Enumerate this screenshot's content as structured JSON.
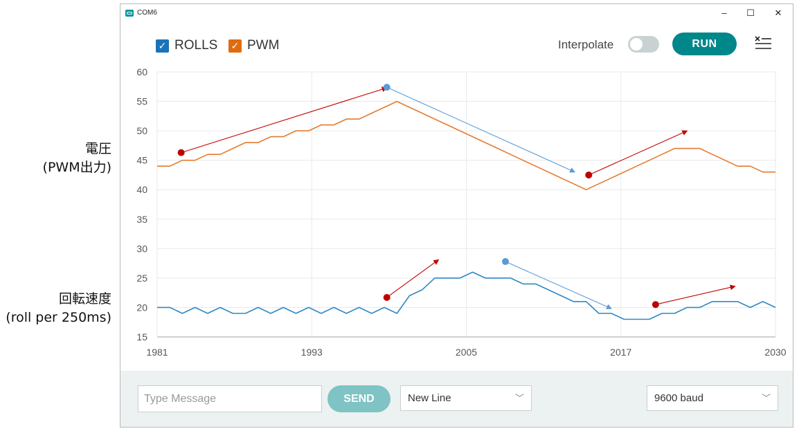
{
  "annotations": {
    "pwm_label": [
      "電圧",
      "(PWM出力)"
    ],
    "rolls_label": [
      "回転速度",
      "(roll per 250ms)"
    ]
  },
  "window": {
    "title": "COM6",
    "controls": {
      "minimize": "–",
      "maximize": "☐",
      "close": "✕"
    }
  },
  "toolbar": {
    "legend": [
      {
        "label": "ROLLS",
        "color": "#1a73b8",
        "checked": true
      },
      {
        "label": "PWM",
        "color": "#e06c10",
        "checked": true
      }
    ],
    "interpolate_label": "Interpolate",
    "interpolate_on": false,
    "run_label": "RUN",
    "clear_icon": "clear-output-icon"
  },
  "chart_data": {
    "type": "line",
    "x_ticks": [
      "1981",
      "1993",
      "2005",
      "2017",
      "2030"
    ],
    "ylim": [
      15,
      60
    ],
    "y_ticks": [
      15,
      20,
      25,
      30,
      35,
      40,
      45,
      50,
      55,
      60
    ],
    "grid": true,
    "series": [
      {
        "name": "PWM",
        "color": "#e57a2e",
        "values": [
          44,
          44,
          45,
          45,
          46,
          46,
          47,
          48,
          48,
          49,
          49,
          50,
          50,
          51,
          51,
          52,
          52,
          53,
          54,
          55,
          54,
          53,
          52,
          51,
          50,
          49,
          48,
          47,
          46,
          45,
          44,
          43,
          42,
          41,
          40,
          41,
          42,
          43,
          44,
          45,
          46,
          47,
          47,
          47,
          46,
          45,
          44,
          44,
          43,
          43
        ]
      },
      {
        "name": "ROLLS",
        "color": "#2e88c4",
        "values": [
          20,
          20,
          19,
          20,
          19,
          20,
          19,
          19,
          20,
          19,
          20,
          19,
          20,
          19,
          20,
          19,
          20,
          19,
          20,
          19,
          22,
          23,
          25,
          25,
          25,
          26,
          25,
          25,
          25,
          24,
          24,
          23,
          22,
          21,
          21,
          19,
          19,
          18,
          18,
          18,
          19,
          19,
          20,
          20,
          21,
          21,
          21,
          20,
          21,
          20
        ]
      }
    ],
    "annotation_arrows": [
      {
        "color": "#c00000",
        "from": [
          1.9,
          46.3
        ],
        "to": [
          18.2,
          57.3
        ]
      },
      {
        "color": "#5b9bd5",
        "from": [
          18.2,
          57.4
        ],
        "to": [
          33.1,
          43.0
        ]
      },
      {
        "color": "#c00000",
        "from": [
          34.2,
          42.5
        ],
        "to": [
          42.0,
          50.0
        ]
      },
      {
        "color": "#c00000",
        "from": [
          18.2,
          21.7
        ],
        "to": [
          22.3,
          28.1
        ]
      },
      {
        "color": "#5b9bd5",
        "from": [
          27.6,
          27.8
        ],
        "to": [
          36.0,
          19.8
        ]
      },
      {
        "color": "#c00000",
        "from": [
          39.5,
          20.5
        ],
        "to": [
          45.8,
          23.6
        ]
      }
    ]
  },
  "bottom": {
    "message_placeholder": "Type Message",
    "send_label": "SEND",
    "line_ending": "New Line",
    "baud": "9600 baud"
  }
}
